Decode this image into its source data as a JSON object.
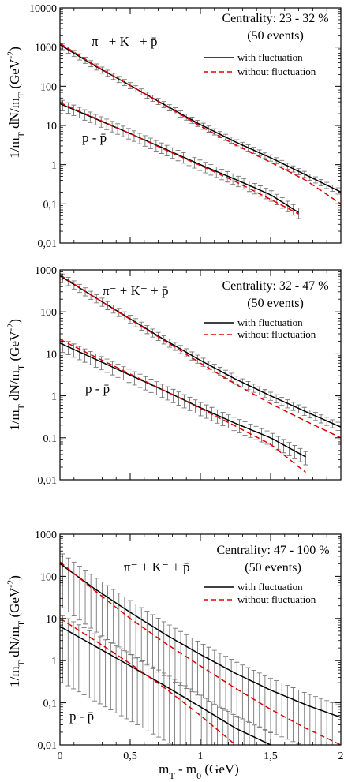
{
  "chart_data": [
    {
      "type": "line",
      "yscale": "log",
      "xlim": [
        0,
        2
      ],
      "ylim": [
        0.01,
        10000
      ],
      "ylabel": "1/m_T dN/m_T (GeV^-2)",
      "y_ticks": [
        "0,01",
        "0,1",
        "1",
        "10",
        "100",
        "1000",
        "10000"
      ],
      "x_ticks": [],
      "annotation": {
        "line1": "Centrality: 23 - 32 %",
        "line2": "(50 events)"
      },
      "legend": {
        "placement": "top-right",
        "entries": [
          "with fluctuation",
          "without fluctuation"
        ]
      },
      "labels": {
        "pion": "π⁻ + K⁻ + p̄",
        "proton": "p - p̄"
      },
      "series": [
        {
          "group": "pion",
          "style": "solid",
          "color": "#000000",
          "x": [
            0,
            0.25,
            0.5,
            0.75,
            1.0,
            1.25,
            1.5,
            1.75,
            2.0
          ],
          "values": [
            1150,
            330,
            105,
            33,
            10.5,
            3.8,
            1.5,
            0.55,
            0.2
          ]
        },
        {
          "group": "pion",
          "style": "dashed",
          "color": "#e00000",
          "x": [
            0,
            0.25,
            0.5,
            0.75,
            1.0,
            1.25,
            1.5,
            1.75,
            2.0
          ],
          "values": [
            1250,
            340,
            105,
            32,
            9.6,
            3.2,
            1.15,
            0.4,
            0.1
          ]
        },
        {
          "group": "proton",
          "style": "solid",
          "color": "#000000",
          "x": [
            0,
            0.25,
            0.5,
            0.75,
            1.0,
            1.25,
            1.5,
            1.7
          ],
          "values": [
            36,
            15,
            6.2,
            2.5,
            1.0,
            0.42,
            0.17,
            0.06
          ]
        },
        {
          "group": "proton",
          "style": "dashed",
          "color": "#e00000",
          "x": [
            0,
            0.25,
            0.5,
            0.75,
            1.0,
            1.25,
            1.5,
            1.7
          ],
          "values": [
            38,
            15.5,
            6.2,
            2.4,
            0.95,
            0.37,
            0.13,
            0.055
          ]
        }
      ],
      "errorbars": [
        {
          "group": "pion",
          "x_start": 0.02,
          "x_end": 1.98,
          "count": 50,
          "rel": 0.18
        },
        {
          "group": "proton",
          "x_start": 0.02,
          "x_end": 1.7,
          "count": 44,
          "rel": 0.3
        }
      ]
    },
    {
      "type": "line",
      "yscale": "log",
      "xlim": [
        0,
        2
      ],
      "ylim": [
        0.01,
        1000
      ],
      "ylabel": "1/m_T dN/m_T (GeV^-2)",
      "y_ticks": [
        "0,01",
        "0,1",
        "1",
        "10",
        "100",
        "1000"
      ],
      "x_ticks": [],
      "annotation": {
        "line1": "Centrality: 32 - 47 %",
        "line2": "(50 events)"
      },
      "legend": {
        "placement": "top-right",
        "entries": [
          "with fluctuation",
          "without fluctuation"
        ]
      },
      "labels": {
        "pion": "π⁻ + K⁻ + p̄",
        "proton": "p - p̄"
      },
      "series": [
        {
          "group": "pion",
          "style": "solid",
          "color": "#000000",
          "x": [
            0,
            0.25,
            0.5,
            0.75,
            1.0,
            1.25,
            1.5,
            1.75,
            2.0
          ],
          "values": [
            720,
            220,
            68,
            21,
            7.0,
            2.5,
            1.0,
            0.42,
            0.18
          ]
        },
        {
          "group": "pion",
          "style": "dashed",
          "color": "#e00000",
          "x": [
            0,
            0.25,
            0.5,
            0.75,
            1.0,
            1.25,
            1.5,
            1.75,
            2.0
          ],
          "values": [
            760,
            220,
            66,
            20,
            6.0,
            1.9,
            0.65,
            0.25,
            0.1
          ]
        },
        {
          "group": "proton",
          "style": "solid",
          "color": "#000000",
          "x": [
            0,
            0.25,
            0.5,
            0.75,
            1.0,
            1.25,
            1.5,
            1.75
          ],
          "values": [
            18,
            7.5,
            3.1,
            1.3,
            0.52,
            0.22,
            0.1,
            0.035
          ]
        },
        {
          "group": "proton",
          "style": "dashed",
          "color": "#e00000",
          "x": [
            0,
            0.25,
            0.5,
            0.75,
            1.0,
            1.25,
            1.5,
            1.75
          ],
          "values": [
            22,
            8.5,
            3.3,
            1.3,
            0.5,
            0.19,
            0.07,
            0.015
          ]
        }
      ],
      "errorbars": [
        {
          "group": "pion",
          "x_start": 0.02,
          "x_end": 1.98,
          "count": 50,
          "rel": 0.22
        },
        {
          "group": "proton",
          "x_start": 0.02,
          "x_end": 1.75,
          "count": 45,
          "rel": 0.35
        }
      ]
    },
    {
      "type": "line",
      "yscale": "log",
      "xlim": [
        0,
        2
      ],
      "ylim": [
        0.01,
        1000
      ],
      "xlabel": "m_T - m_0 (GeV)",
      "ylabel": "1/m_T dN/m_T (GeV^-2)",
      "y_ticks": [
        "0,01",
        "0,1",
        "1",
        "10",
        "100",
        "1000"
      ],
      "x_ticks": [
        "0",
        "0,5",
        "1",
        "1,5",
        "2"
      ],
      "annotation": {
        "line1": "Centrality: 47 - 100 %",
        "line2": "(50 events)"
      },
      "legend": {
        "placement": "top-right",
        "entries": [
          "with fluctuation",
          "without fluctuation"
        ]
      },
      "labels": {
        "pion": "π⁻ + K⁻ + p̄",
        "proton": "p - p̄"
      },
      "series": [
        {
          "group": "pion",
          "style": "solid",
          "color": "#000000",
          "x": [
            0,
            0.25,
            0.5,
            0.75,
            1.0,
            1.25,
            1.5,
            1.75,
            2.0
          ],
          "values": [
            200,
            50,
            14,
            4.2,
            1.4,
            0.5,
            0.2,
            0.09,
            0.045
          ]
        },
        {
          "group": "pion",
          "style": "dashed",
          "color": "#e00000",
          "x": [
            0,
            0.25,
            0.5,
            0.75,
            1.0,
            1.25,
            1.5,
            1.75,
            2.0
          ],
          "values": [
            220,
            45,
            10,
            2.6,
            0.75,
            0.22,
            0.07,
            0.025,
            0.01
          ]
        },
        {
          "group": "proton",
          "style": "solid",
          "color": "#000000",
          "x": [
            0,
            0.25,
            0.5,
            0.75,
            1.0,
            1.25,
            1.5
          ],
          "values": [
            6.5,
            2.2,
            0.75,
            0.25,
            0.08,
            0.025,
            0.01
          ]
        },
        {
          "group": "proton",
          "style": "dashed",
          "color": "#e00000",
          "x": [
            0,
            0.25,
            0.5,
            0.75,
            1.0,
            1.25
          ],
          "values": [
            10,
            3.0,
            0.85,
            0.22,
            0.05,
            0.01
          ]
        }
      ],
      "errorbars": [
        {
          "group": "pion",
          "x_start": 0.02,
          "x_end": 1.98,
          "count": 50,
          "rel": 0.9
        },
        {
          "group": "proton",
          "x_start": 0.02,
          "x_end": 1.5,
          "count": 40,
          "rel": 0.95
        }
      ]
    }
  ]
}
